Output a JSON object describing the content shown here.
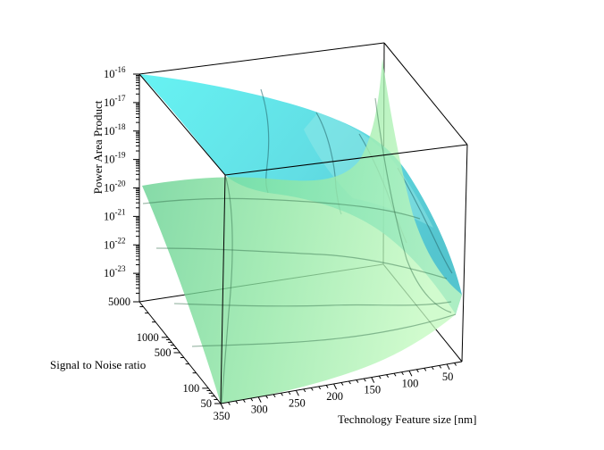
{
  "chart_data": {
    "type": "surface",
    "title": "",
    "xlabel": "Technology Feature size [nm]",
    "ylabel": "Signal to Noise ratio",
    "zlabel": "Power Area Product",
    "x_ticks": [
      "350",
      "300",
      "250",
      "200",
      "150",
      "100",
      "50"
    ],
    "y_ticks": [
      "50",
      "100",
      "500",
      "1000",
      "5000"
    ],
    "z_ticks": [
      {
        "base": "10",
        "exp": "-16"
      },
      {
        "base": "10",
        "exp": "-17"
      },
      {
        "base": "10",
        "exp": "-18"
      },
      {
        "base": "10",
        "exp": "-19"
      },
      {
        "base": "10",
        "exp": "-20"
      },
      {
        "base": "10",
        "exp": "-21"
      },
      {
        "base": "10",
        "exp": "-22"
      },
      {
        "base": "10",
        "exp": "-23"
      }
    ],
    "x_range": [
      30,
      350
    ],
    "y_range": [
      50,
      5000
    ],
    "y_scale": "log",
    "z_range": [
      1e-24,
      1e-16
    ],
    "z_scale": "log",
    "series": [
      {
        "color": "#45eaea",
        "opacity": 0.8
      },
      {
        "color": "#8cf08c",
        "opacity": 0.75
      }
    ],
    "grid": false,
    "box": true
  }
}
